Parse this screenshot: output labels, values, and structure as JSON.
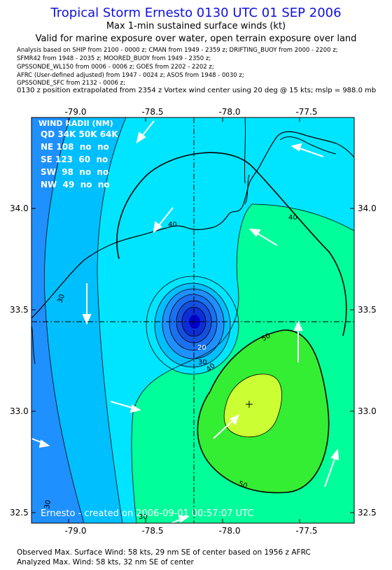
{
  "header": {
    "title": "Tropical Storm Ernesto 0130 UTC 01 SEP 2006",
    "subtitle": "Max 1-min sustained surface winds (kt)",
    "validity": "Valid for marine exposure over water, open terrain exposure over land",
    "sources": [
      "Analysis based on   SHIP from 2100 - 0000 z;  CMAN from 1949 - 2359 z;  DRIFTING_BUOY from 2000 - 2200 z;",
      "SFMR42 from 1948 - 2035 z;  MOORED_BUOY from 1949 - 2350 z;",
      "GPSSONDE_WL150 from 0006 - 0006 z;  GOES from 2202 - 2202 z;",
      "AFRC (User-defined adjusted) from 1947 - 0024 z;  ASOS from 1948 - 0030 z;",
      "GPSSONDE_SFC from 2132 - 0006 z;"
    ],
    "position_note": "0130 z position extrapolated from 2354 z Vortex wind center using 20 deg @ 15 kts; mslp = 988.0 mb"
  },
  "map": {
    "lon_ticks": [
      "-79.0",
      "-78.5",
      "-78.0",
      "-77.5"
    ],
    "lat_ticks": [
      "34.0",
      "33.5",
      "33.0",
      "32.5"
    ],
    "contour_labels": [
      "40",
      "40",
      "30",
      "20",
      "30",
      "40",
      "50",
      "50",
      "30",
      "30"
    ],
    "wind_radii": {
      "title": "WIND RADII (NM)",
      "header": "QD 34K 50K 64K",
      "rows": [
        "NE 108  no  no",
        "SE 123  60  no",
        "SW  98  no  no",
        "NW  49  no  no"
      ]
    },
    "credit": "Ernesto - created on 2006-09-01 00:57:07 UTC",
    "center": {
      "lon": -78.2,
      "lat": 33.44
    },
    "max_wind_marker": {
      "lon": -77.9,
      "lat": 33.04
    },
    "colors": {
      "fill_10_20": "#1e90ff",
      "fill_20_30": "#00bfff",
      "fill_30_40": "#00e5ff",
      "fill_40_50": "#00ff9a",
      "fill_50_60": "#33ee33",
      "fill_60_plus": "#ccff33",
      "core_dark": "#0000cc"
    }
  },
  "footer": {
    "observed": "Observed Max. Surface Wind: 58 kts, 29 nm SE of center based on 1956 z AFRC",
    "analyzed": "Analyzed Max. Wind: 58 kts, 32 nm SE of center"
  }
}
